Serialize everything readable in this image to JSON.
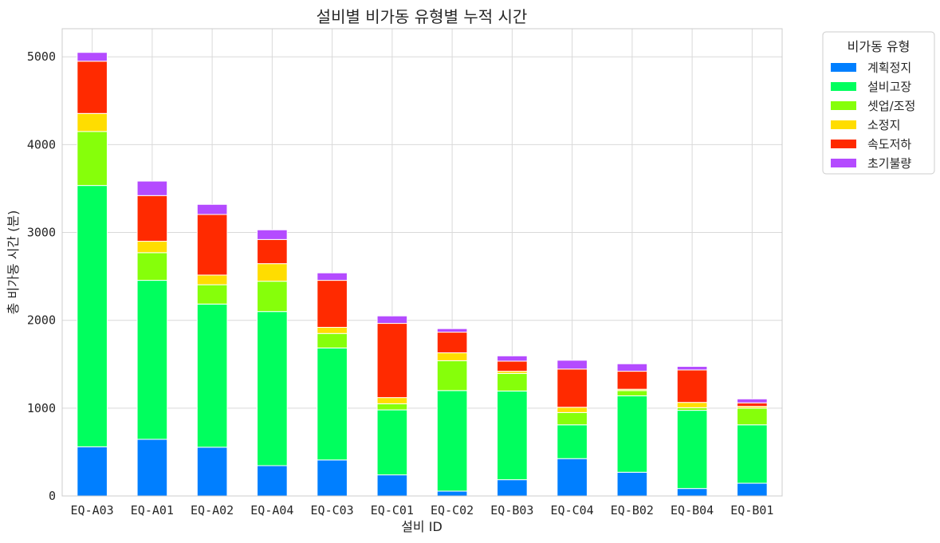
{
  "chart_data": {
    "type": "bar",
    "stacked": true,
    "title": "설비별 비가동 유형별 누적 시간",
    "xlabel": "설비 ID",
    "ylabel": "총 비가동 시간 (분)",
    "ylim": [
      0,
      5320
    ],
    "yticks": [
      "0",
      "1000",
      "2000",
      "3000",
      "4000",
      "5000"
    ],
    "grid": true,
    "legend_title": "비가동 유형",
    "legend_position": "outside-right-top",
    "categories": [
      "EQ-A03",
      "EQ-A01",
      "EQ-A02",
      "EQ-A04",
      "EQ-C03",
      "EQ-C01",
      "EQ-C02",
      "EQ-B03",
      "EQ-C04",
      "EQ-B02",
      "EQ-B04",
      "EQ-B01"
    ],
    "series": [
      {
        "name": "계획정지",
        "color": "#007fff",
        "values": [
          560,
          645,
          555,
          345,
          410,
          240,
          55,
          185,
          425,
          270,
          85,
          145
        ]
      },
      {
        "name": "설비고장",
        "color": "#00ff5e",
        "values": [
          2975,
          1810,
          1630,
          1755,
          1275,
          740,
          1145,
          1010,
          385,
          870,
          890,
          665
        ]
      },
      {
        "name": "셋업/조정",
        "color": "#86ff0a",
        "values": [
          615,
          315,
          220,
          345,
          165,
          70,
          340,
          200,
          140,
          60,
          30,
          190
        ]
      },
      {
        "name": "소정지",
        "color": "#ffdd00",
        "values": [
          205,
          130,
          110,
          200,
          70,
          70,
          90,
          25,
          60,
          15,
          60,
          20
        ]
      },
      {
        "name": "속도저하",
        "color": "#ff2a00",
        "values": [
          595,
          520,
          690,
          275,
          535,
          845,
          235,
          115,
          435,
          205,
          370,
          40
        ]
      },
      {
        "name": "초기불량",
        "color": "#b44bff",
        "values": [
          100,
          165,
          115,
          110,
          85,
          85,
          40,
          60,
          100,
          85,
          40,
          45
        ]
      }
    ]
  }
}
